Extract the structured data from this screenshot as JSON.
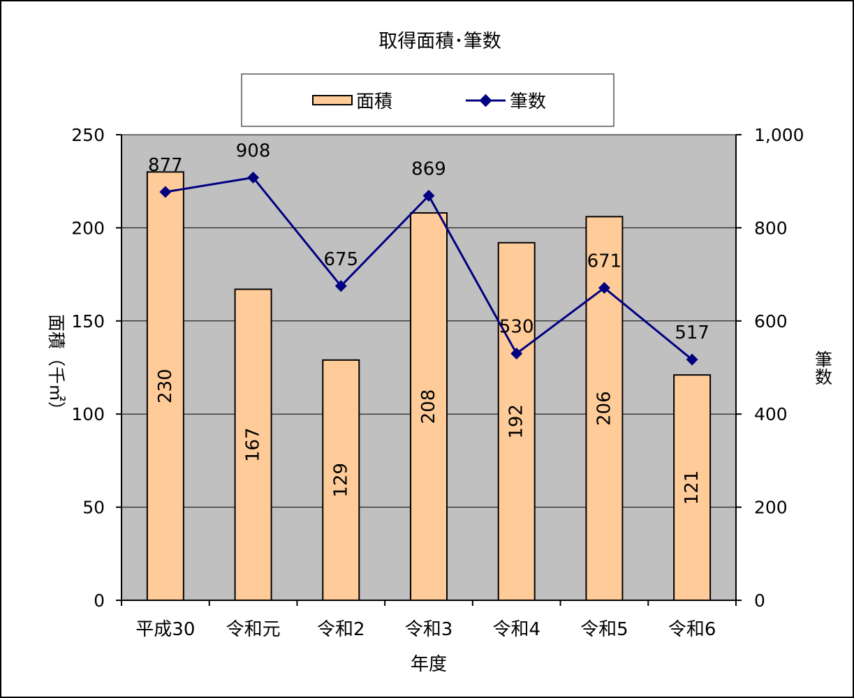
{
  "chart_data": {
    "type": "bar+line",
    "title": "取得面積･筆数",
    "xlabel": "年度",
    "ylabel_left": "面積（千㎡）",
    "ylabel_right": "筆数",
    "categories": [
      "平成30",
      "令和元",
      "令和2",
      "令和3",
      "令和4",
      "令和5",
      "令和6"
    ],
    "series": [
      {
        "name": "面積",
        "type": "bar",
        "axis": "left",
        "values": [
          230,
          167,
          129,
          208,
          192,
          206,
          121
        ],
        "data_labels": [
          "230",
          "167",
          "129",
          "208",
          "192",
          "206",
          "121"
        ],
        "color": "#FFCC99"
      },
      {
        "name": "筆数",
        "type": "line",
        "axis": "right",
        "values": [
          877,
          908,
          675,
          869,
          530,
          671,
          517
        ],
        "data_labels": [
          "877",
          "908",
          "675",
          "869",
          "530",
          "671",
          "517"
        ],
        "color": "#000080"
      }
    ],
    "ylim_left": [
      0,
      250
    ],
    "yticks_left": [
      "0",
      "50",
      "100",
      "150",
      "200",
      "250"
    ],
    "ylim_right": [
      0,
      1000
    ],
    "yticks_right": [
      "0",
      "200",
      "400",
      "600",
      "800",
      "1,000"
    ],
    "grid": true,
    "legend_position": "top",
    "plot_background": "#C0C0C0"
  }
}
